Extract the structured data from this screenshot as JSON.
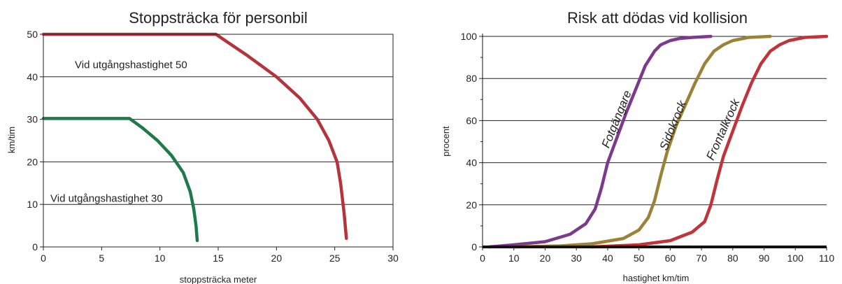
{
  "chart_data": [
    {
      "type": "line",
      "title": "Stoppsträcka för personbil",
      "xlabel": "stoppsträcka meter",
      "ylabel": "km/tim",
      "xlim": [
        0,
        30
      ],
      "ylim": [
        0,
        50
      ],
      "xticks": [
        0,
        5,
        10,
        15,
        20,
        25,
        30
      ],
      "yticks": [
        0,
        10,
        20,
        30,
        40,
        50
      ],
      "grid": "horizontal",
      "series": [
        {
          "color": "#b5343c",
          "x": [
            0,
            14.8,
            17.5,
            20,
            22,
            23.5,
            24.5,
            25.2,
            25.5,
            25.8,
            26
          ],
          "y": [
            50,
            50,
            45,
            40,
            35,
            30,
            25,
            20,
            15,
            8,
            2
          ]
        },
        {
          "color": "#1e7a4b",
          "x": [
            0,
            7.4,
            8.5,
            9.8,
            11,
            12,
            12.6,
            12.9,
            13.1,
            13.2
          ],
          "y": [
            30.2,
            30.2,
            28,
            25,
            21.5,
            17.5,
            13,
            9,
            5,
            1.5
          ]
        }
      ],
      "annotations": [
        {
          "text": "Vid utgångshastighet 50",
          "x": 2.7,
          "y": 42
        },
        {
          "text": "Vid utgångshastighet 30",
          "x": 0.6,
          "y": 10.6
        }
      ]
    },
    {
      "type": "line",
      "title": "Risk att dödas vid kollision",
      "xlabel": "hastighet km/tim",
      "ylabel": "procent",
      "xlim": [
        0,
        110
      ],
      "ylim": [
        0,
        100
      ],
      "xticks": [
        0,
        10,
        20,
        30,
        40,
        50,
        60,
        70,
        80,
        90,
        100,
        110
      ],
      "yticks": [
        0,
        20,
        40,
        60,
        80,
        100
      ],
      "grid": "horizontal",
      "series": [
        {
          "name": "Fotgängare",
          "color": "#7b3a8c",
          "x": [
            2,
            10,
            20,
            28,
            33,
            36,
            38,
            40,
            43,
            46,
            49,
            52,
            55,
            57,
            60,
            63,
            67,
            73
          ],
          "y": [
            0,
            1,
            2.5,
            6,
            11,
            18,
            28,
            40,
            52,
            64,
            75,
            86,
            93,
            96,
            98,
            99,
            99.5,
            100
          ]
        },
        {
          "name": "Sidokrock",
          "color": "#9a8236",
          "x": [
            10,
            25,
            35,
            45,
            50,
            53,
            55,
            57,
            59,
            62,
            65,
            68,
            71,
            74,
            77,
            80,
            85,
            92
          ],
          "y": [
            0,
            0.5,
            1.5,
            4,
            8,
            14,
            22,
            34,
            45,
            58,
            68,
            78,
            87,
            93,
            96,
            98,
            99.5,
            100
          ]
        },
        {
          "name": "Frontalkrock",
          "color": "#c0333a",
          "x": [
            35,
            50,
            60,
            67,
            71,
            73,
            75,
            77,
            80,
            83,
            86,
            89,
            92,
            95,
            98,
            103,
            110
          ],
          "y": [
            0,
            1,
            3,
            7,
            12,
            20,
            32,
            43,
            55,
            67,
            78,
            87,
            93,
            96,
            98,
            99.5,
            100
          ]
        }
      ],
      "curve_labels": [
        {
          "text": "Fotgängare",
          "x": 44,
          "y": 60,
          "angle": -68
        },
        {
          "text": "Sidokrock",
          "x": 62,
          "y": 57,
          "angle": -68
        },
        {
          "text": "Frontalkrock",
          "x": 78,
          "y": 55,
          "angle": -66
        }
      ]
    }
  ]
}
